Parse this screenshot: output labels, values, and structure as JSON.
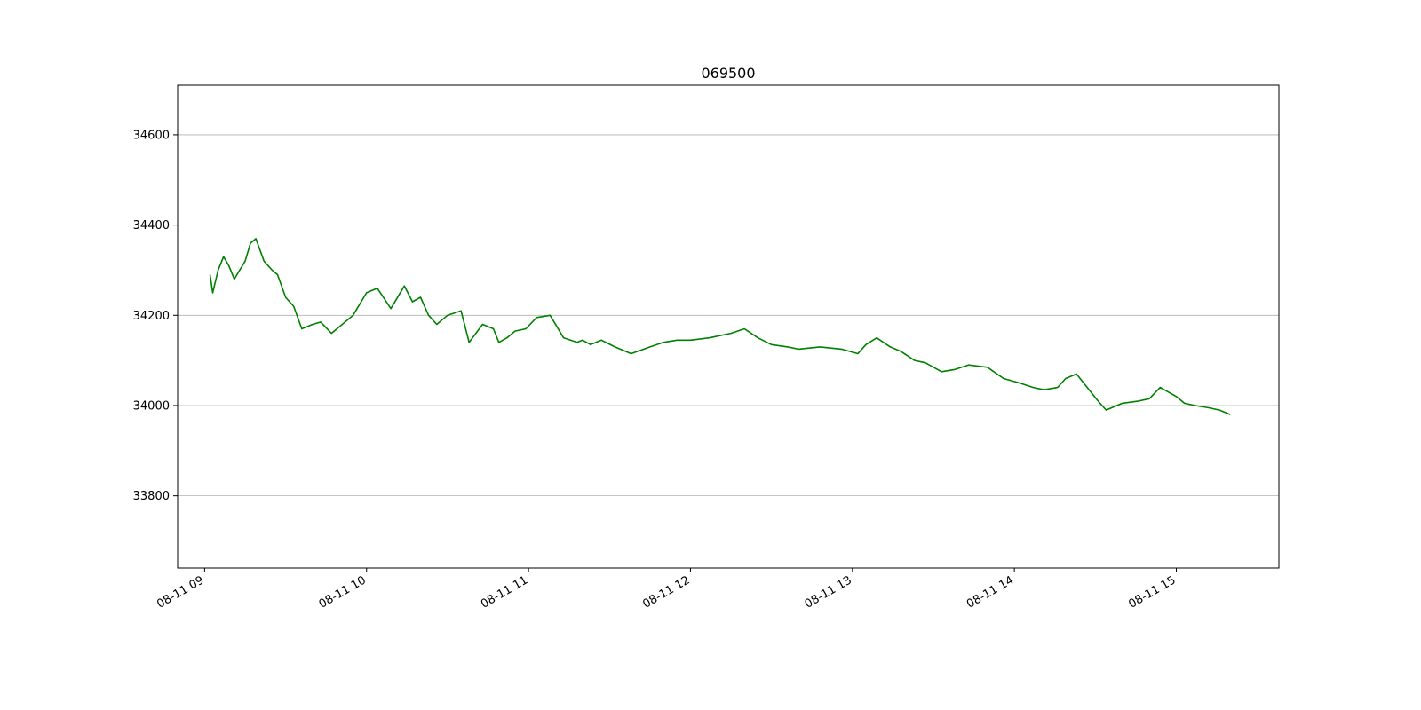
{
  "chart_data": {
    "type": "line",
    "title": "069500",
    "xlabel": "",
    "ylabel": "",
    "x_axis": {
      "kind": "time",
      "range": [
        "08-11 08:50",
        "08-11 15:38"
      ],
      "ticks": [
        {
          "value": "08-11 09:00",
          "label": "08-11 09"
        },
        {
          "value": "08-11 10:00",
          "label": "08-11 10"
        },
        {
          "value": "08-11 11:00",
          "label": "08-11 11"
        },
        {
          "value": "08-11 12:00",
          "label": "08-11 12"
        },
        {
          "value": "08-11 13:00",
          "label": "08-11 13"
        },
        {
          "value": "08-11 14:00",
          "label": "08-11 14"
        },
        {
          "value": "08-11 15:00",
          "label": "08-11 15"
        }
      ]
    },
    "y_axis": {
      "range": [
        33640,
        34710
      ],
      "ticks": [
        {
          "value": 33800,
          "label": "33800"
        },
        {
          "value": 34000,
          "label": "34000"
        },
        {
          "value": 34200,
          "label": "34200"
        },
        {
          "value": 34400,
          "label": "34400"
        },
        {
          "value": 34600,
          "label": "34600"
        }
      ]
    },
    "grid": {
      "y": true,
      "x": false
    },
    "series": [
      {
        "color": "#008000",
        "x": [
          "08-11 09:02",
          "08-11 09:03",
          "08-11 09:05",
          "08-11 09:07",
          "08-11 09:09",
          "08-11 09:11",
          "08-11 09:13",
          "08-11 09:15",
          "08-11 09:17",
          "08-11 09:19",
          "08-11 09:22",
          "08-11 09:25",
          "08-11 09:27",
          "08-11 09:30",
          "08-11 09:33",
          "08-11 09:36",
          "08-11 09:40",
          "08-11 09:43",
          "08-11 09:47",
          "08-11 09:50",
          "08-11 09:55",
          "08-11 10:00",
          "08-11 10:04",
          "08-11 10:09",
          "08-11 10:14",
          "08-11 10:17",
          "08-11 10:20",
          "08-11 10:23",
          "08-11 10:26",
          "08-11 10:30",
          "08-11 10:35",
          "08-11 10:38",
          "08-11 10:43",
          "08-11 10:47",
          "08-11 10:49",
          "08-11 10:52",
          "08-11 10:55",
          "08-11 10:59",
          "08-11 11:03",
          "08-11 11:08",
          "08-11 11:13",
          "08-11 11:18",
          "08-11 11:20",
          "08-11 11:23",
          "08-11 11:27",
          "08-11 11:32",
          "08-11 11:38",
          "08-11 11:45",
          "08-11 11:50",
          "08-11 11:55",
          "08-11 12:00",
          "08-11 12:07",
          "08-11 12:15",
          "08-11 12:20",
          "08-11 12:25",
          "08-11 12:30",
          "08-11 12:36",
          "08-11 12:40",
          "08-11 12:48",
          "08-11 12:56",
          "08-11 13:02",
          "08-11 13:05",
          "08-11 13:09",
          "08-11 13:14",
          "08-11 13:18",
          "08-11 13:23",
          "08-11 13:27",
          "08-11 13:33",
          "08-11 13:38",
          "08-11 13:43",
          "08-11 13:50",
          "08-11 13:56",
          "08-11 14:02",
          "08-11 14:07",
          "08-11 14:11",
          "08-11 14:16",
          "08-11 14:19",
          "08-11 14:23",
          "08-11 14:27",
          "08-11 14:31",
          "08-11 14:34",
          "08-11 14:40",
          "08-11 14:46",
          "08-11 14:50",
          "08-11 14:54",
          "08-11 15:00",
          "08-11 15:03",
          "08-11 15:07",
          "08-11 15:12",
          "08-11 15:16",
          "08-11 15:20"
        ],
        "y": [
          34290,
          34250,
          34300,
          34330,
          34310,
          34280,
          34300,
          34320,
          34360,
          34370,
          34320,
          34300,
          34290,
          34240,
          34220,
          34170,
          34180,
          34185,
          34160,
          34175,
          34200,
          34250,
          34260,
          34215,
          34265,
          34230,
          34240,
          34200,
          34180,
          34200,
          34210,
          34140,
          34180,
          34170,
          34140,
          34150,
          34165,
          34170,
          34195,
          34200,
          34150,
          34140,
          34145,
          34135,
          34145,
          34130,
          34115,
          34130,
          34140,
          34145,
          34145,
          34150,
          34160,
          34170,
          34150,
          34135,
          34130,
          34125,
          34130,
          34125,
          34115,
          34135,
          34150,
          34130,
          34120,
          34100,
          34095,
          34075,
          34080,
          34090,
          34085,
          34060,
          34050,
          34040,
          34035,
          34040,
          34060,
          34070,
          34040,
          34010,
          33990,
          34005,
          34010,
          34015,
          34040,
          34020,
          34005,
          34000,
          33995,
          33990,
          33980
        ]
      }
    ]
  }
}
